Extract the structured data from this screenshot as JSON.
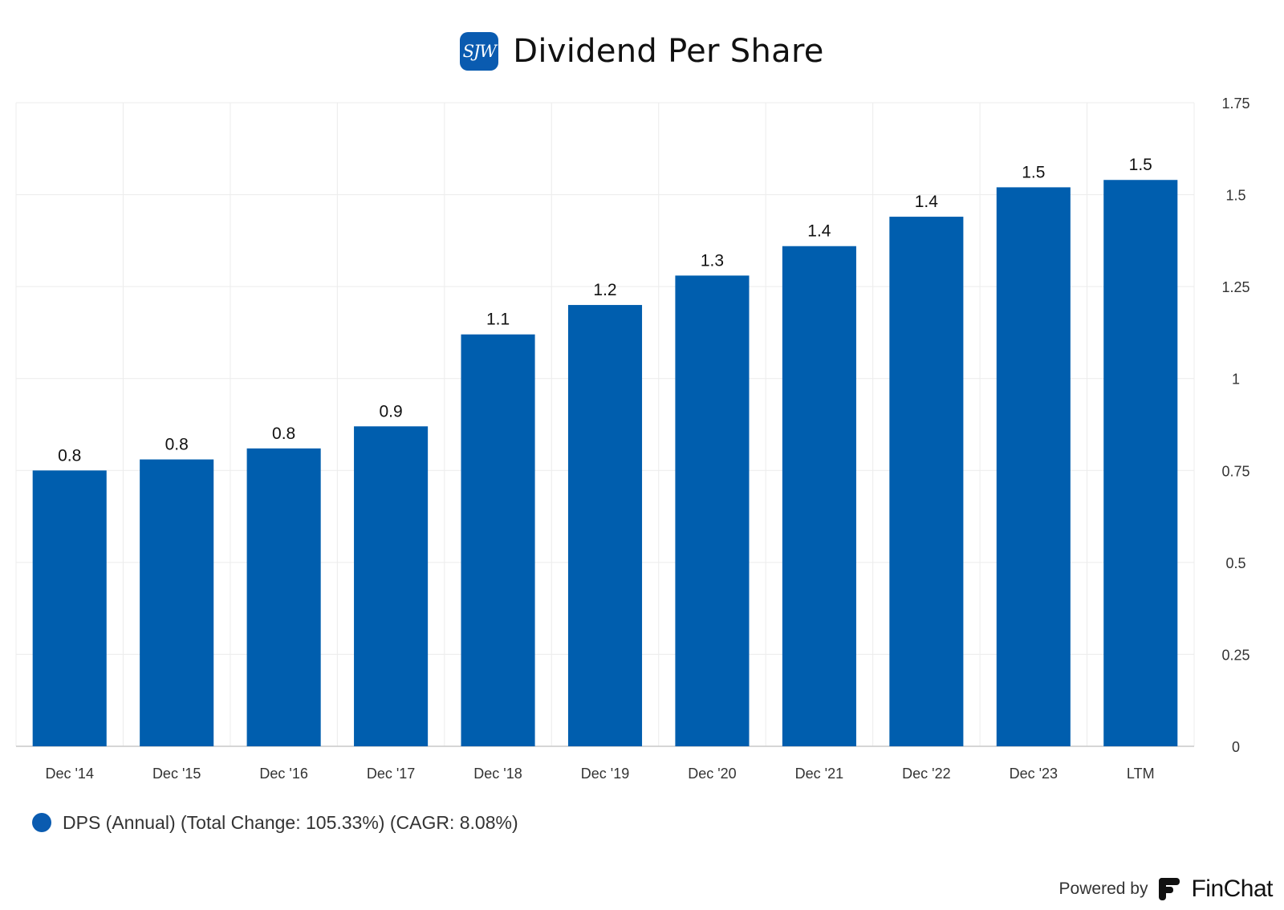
{
  "header": {
    "logo_text": "SJW",
    "title": "Dividend Per Share"
  },
  "colors": {
    "bar": "#005eae",
    "grid": "#ececec",
    "axis": "#c9c9c9",
    "tick_text": "#333333",
    "label_text": "#111111"
  },
  "chart_data": {
    "type": "bar",
    "title": "Dividend Per Share",
    "categories": [
      "Dec '14",
      "Dec '15",
      "Dec '16",
      "Dec '17",
      "Dec '18",
      "Dec '19",
      "Dec '20",
      "Dec '21",
      "Dec '22",
      "Dec '23",
      "LTM"
    ],
    "series": [
      {
        "name": "DPS (Annual) (Total Change: 105.33%) (CAGR: 8.08%)",
        "values": [
          0.75,
          0.78,
          0.81,
          0.87,
          1.12,
          1.2,
          1.28,
          1.36,
          1.44,
          1.52,
          1.54
        ],
        "labels": [
          "0.8",
          "0.8",
          "0.8",
          "0.9",
          "1.1",
          "1.2",
          "1.3",
          "1.4",
          "1.4",
          "1.5",
          "1.5"
        ]
      }
    ],
    "yaxis": {
      "position": "right",
      "min": 0,
      "max": 1.75,
      "ticks": [
        0,
        0.25,
        0.5,
        0.75,
        1,
        1.25,
        1.5,
        1.75
      ],
      "tick_labels": [
        "0",
        "0.25",
        "0.5",
        "0.75",
        "1",
        "1.25",
        "1.5",
        "1.75"
      ]
    },
    "grid": true,
    "legend": "bottom-left",
    "xlabel": "",
    "ylabel": ""
  },
  "legend": {
    "label": "DPS (Annual) (Total Change: 105.33%) (CAGR: 8.08%)"
  },
  "footer": {
    "powered_by": "Powered by",
    "brand": "FinChat",
    "brand_icon": "finchat-logo-icon"
  }
}
